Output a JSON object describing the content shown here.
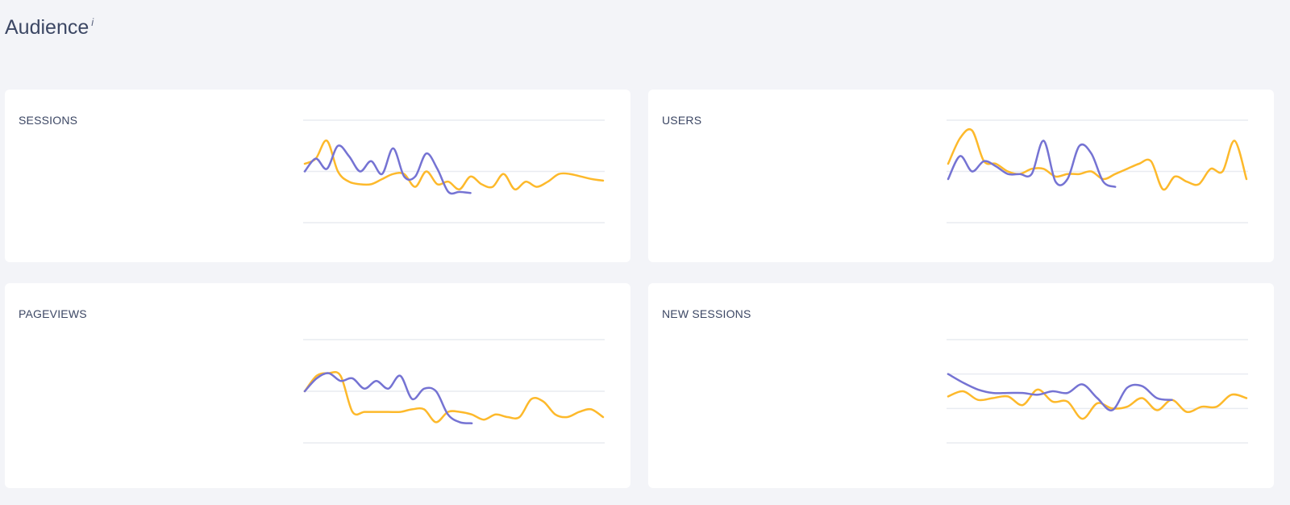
{
  "page": {
    "title": "Audience",
    "info_mark": "i"
  },
  "colors": {
    "current": "#fdb92b",
    "previous": "#7573d3",
    "grid": "#e9ecf1",
    "down": "#d0463c"
  },
  "cards": [
    {
      "title": "SESSIONS",
      "value": "",
      "change": "",
      "trend": "up"
    },
    {
      "title": "USERS",
      "value": "",
      "change": "",
      "trend": "up"
    },
    {
      "title": "PAGEVIEWS",
      "value": "",
      "change": "",
      "trend": "up"
    },
    {
      "title": "NEW SESSIONS",
      "value": "",
      "change": "",
      "trend": "down"
    }
  ],
  "chart_data": [
    {
      "type": "line",
      "title": "SESSIONS",
      "ylim": [
        0,
        2
      ],
      "y_ticks": [
        "",
        "",
        ""
      ],
      "grid": true,
      "series": [
        {
          "color": "#fdb92b",
          "values": [
            1.15,
            1.25,
            1.6,
            1.0,
            0.8,
            0.75,
            0.75,
            0.85,
            0.95,
            0.95,
            0.7,
            1.0,
            0.75,
            0.8,
            0.65,
            0.9,
            0.75,
            0.7,
            0.95,
            0.65,
            0.8,
            0.7,
            0.8,
            0.95,
            0.95,
            0.9,
            0.85,
            0.82
          ]
        },
        {
          "color": "#7573d3",
          "values": [
            1.0,
            1.25,
            1.05,
            1.5,
            1.3,
            1.0,
            1.2,
            0.95,
            1.45,
            0.9,
            0.9,
            1.35,
            1.05,
            0.6,
            0.6,
            0.58
          ]
        }
      ]
    },
    {
      "type": "line",
      "title": "USERS",
      "ylim": [
        0,
        2
      ],
      "y_ticks": [
        "",
        "",
        ""
      ],
      "grid": true,
      "series": [
        {
          "color": "#fdb92b",
          "values": [
            1.15,
            1.65,
            1.8,
            1.2,
            1.15,
            1.0,
            0.95,
            1.05,
            1.05,
            0.9,
            0.95,
            0.95,
            1.0,
            0.85,
            0.95,
            1.05,
            1.15,
            1.2,
            0.65,
            0.9,
            0.8,
            0.75,
            1.05,
            1.0,
            1.6,
            0.85
          ]
        },
        {
          "color": "#7573d3",
          "values": [
            0.85,
            1.3,
            1.0,
            1.2,
            1.1,
            0.95,
            0.95,
            0.95,
            1.6,
            0.8,
            0.85,
            1.5,
            1.35,
            0.8,
            0.7
          ]
        }
      ]
    },
    {
      "type": "line",
      "title": "PAGEVIEWS",
      "ylim": [
        0,
        2
      ],
      "y_ticks": [
        "",
        "",
        ""
      ],
      "grid": true,
      "series": [
        {
          "color": "#fdb92b",
          "values": [
            1.0,
            1.3,
            1.35,
            1.3,
            0.6,
            0.6,
            0.6,
            0.6,
            0.6,
            0.65,
            0.65,
            0.4,
            0.6,
            0.6,
            0.55,
            0.45,
            0.55,
            0.5,
            0.5,
            0.85,
            0.8,
            0.55,
            0.5,
            0.6,
            0.65,
            0.5
          ]
        },
        {
          "color": "#7573d3",
          "values": [
            1.0,
            1.25,
            1.35,
            1.2,
            1.25,
            1.05,
            1.2,
            1.05,
            1.3,
            0.85,
            1.05,
            1.0,
            0.55,
            0.4,
            0.38
          ]
        }
      ]
    },
    {
      "type": "line",
      "title": "NEW SESSIONS",
      "ylim": [
        0,
        3
      ],
      "y_ticks": [
        "",
        "",
        "",
        ""
      ],
      "grid": true,
      "series": [
        {
          "color": "#fdb92b",
          "values": [
            1.35,
            1.5,
            1.25,
            1.3,
            1.35,
            1.1,
            1.55,
            1.2,
            1.2,
            0.7,
            1.15,
            1.0,
            1.05,
            1.3,
            0.95,
            1.25,
            0.9,
            1.05,
            1.05,
            1.4,
            1.3
          ]
        },
        {
          "color": "#7573d3",
          "values": [
            2.0,
            1.75,
            1.55,
            1.45,
            1.45,
            1.45,
            1.4,
            1.5,
            1.45,
            1.7,
            1.3,
            0.95,
            1.6,
            1.65,
            1.3,
            1.25
          ]
        }
      ]
    }
  ]
}
